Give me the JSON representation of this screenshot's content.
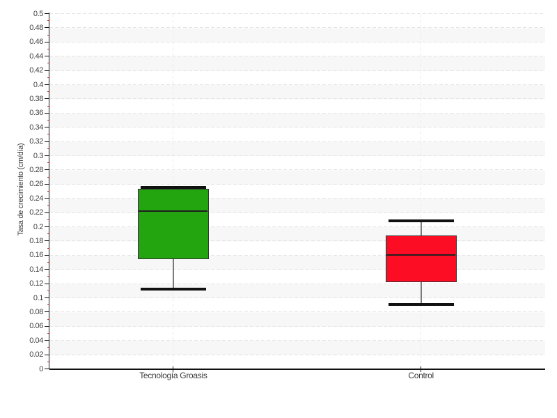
{
  "chart_data": {
    "type": "boxplot",
    "title": "",
    "ylabel": "Tasa de crecimiento (cm/día)",
    "xlabel": "",
    "ylim": [
      0,
      0.5
    ],
    "ytick_step": 0.02,
    "yminor_step": 0.01,
    "grid": "horizontal-dashed",
    "background_bands": "alternating 0.02 strips",
    "legend_position": "none",
    "categories": [
      "Tecnología Groasis",
      "Control"
    ],
    "series": [
      {
        "name": "Tecnología Groasis",
        "color": "#22a50e",
        "min": 0.112,
        "q1": 0.154,
        "median": 0.222,
        "q3": 0.253,
        "max": 0.255
      },
      {
        "name": "Control",
        "color": "#fc0d23",
        "min": 0.091,
        "q1": 0.122,
        "median": 0.16,
        "q3": 0.188,
        "max": 0.208
      }
    ],
    "colors": {
      "band": "#f7f7f7",
      "gridline": "#e4e4e4",
      "gridline_v": "#ececec",
      "axis": "#111111",
      "tick_label": "#3f3f3f",
      "minor_tick": "#d42a2a",
      "whisker": "#7a7a7a",
      "cap": "#111111",
      "median": "#1f1f1f",
      "box_border": "#333333"
    }
  }
}
